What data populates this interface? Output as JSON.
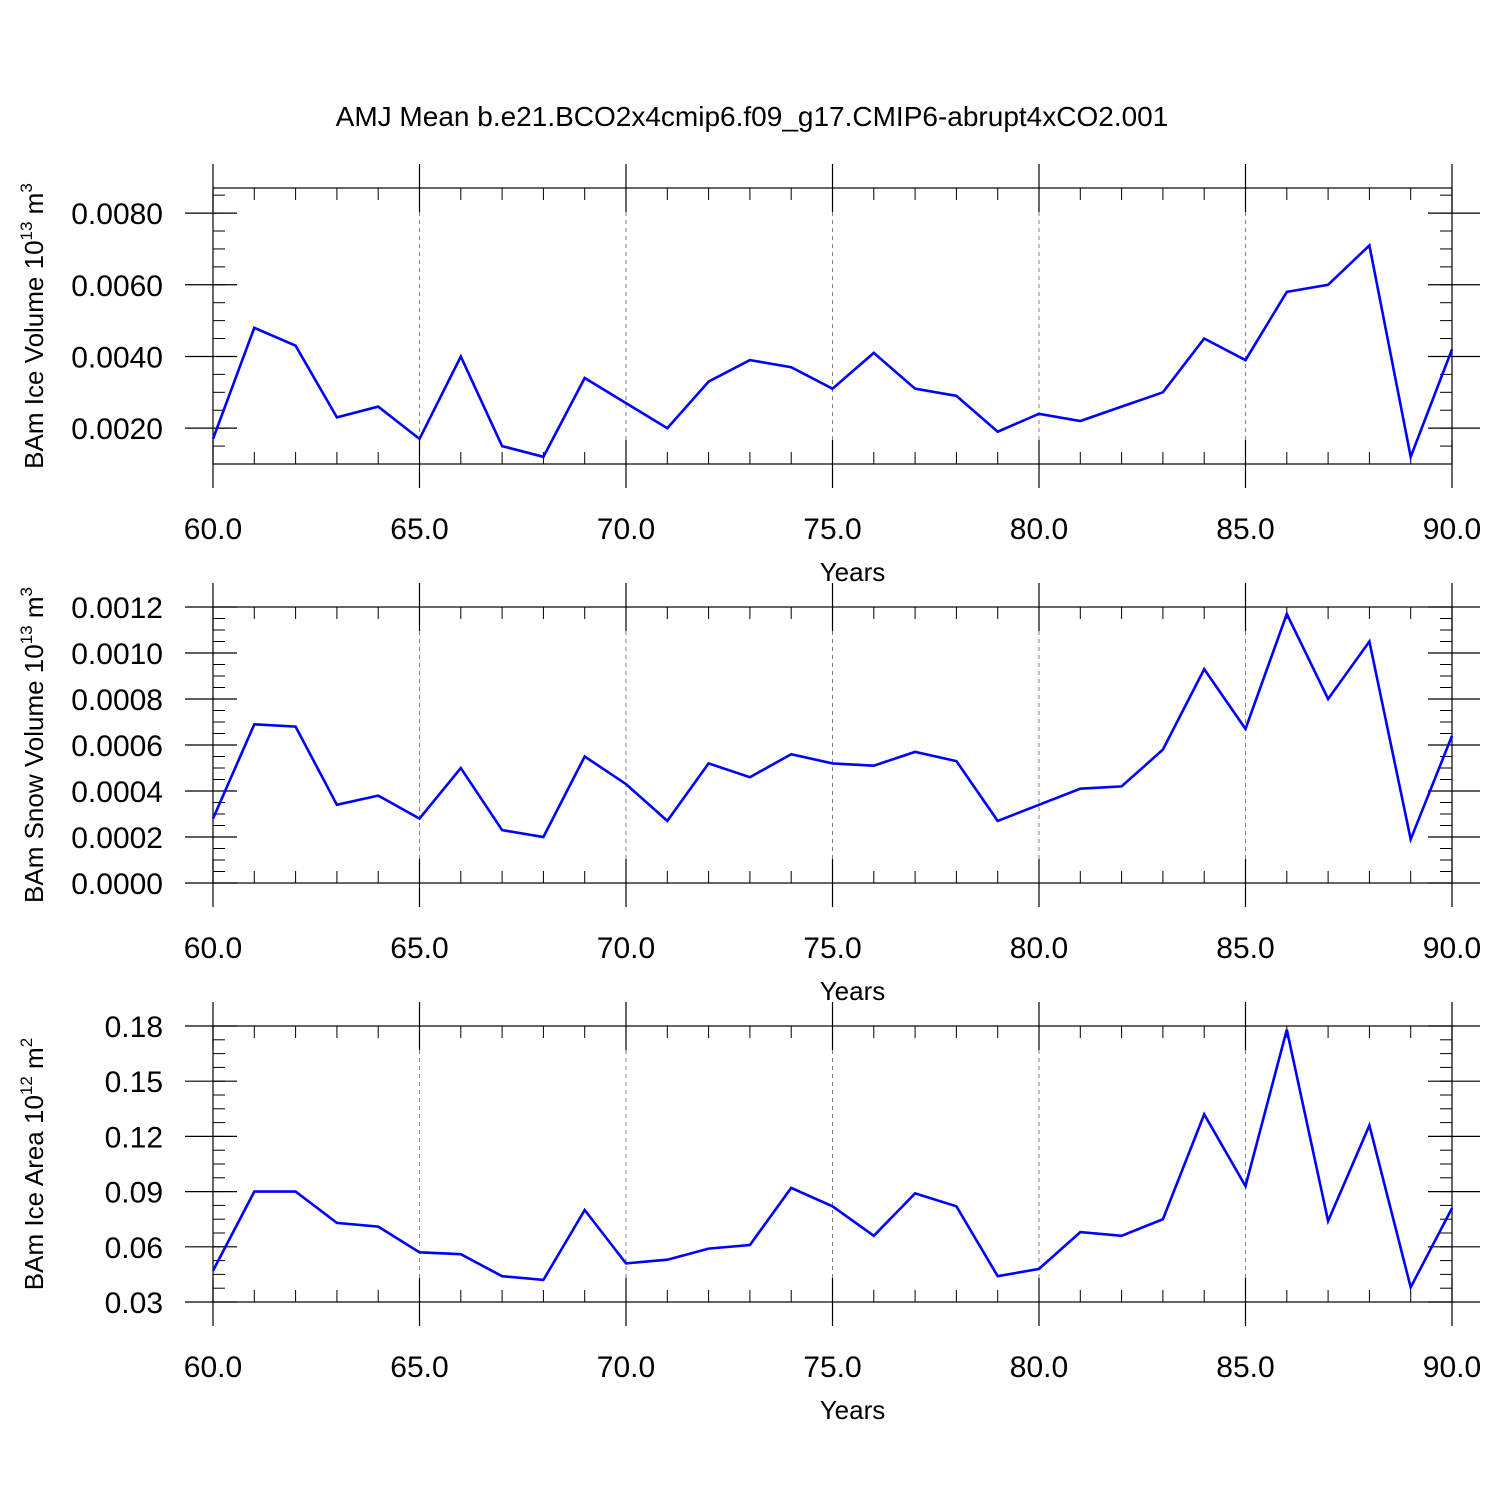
{
  "title": "AMJ Mean b.e21.BCO2x4cmip6.f09_g17.CMIP6-abrupt4xCO2.001",
  "colors": {
    "line": "#0000ff",
    "axis": "#000000",
    "grid": "#808080"
  },
  "chart_data": [
    {
      "type": "line",
      "xlabel": "Years",
      "ylabel": {
        "base": "BAm Ice Volume 10",
        "exp": "13",
        "unit": " m",
        "unit_exp": "3"
      },
      "xlim": [
        60,
        90
      ],
      "ylim": [
        0.001,
        0.0087
      ],
      "xticks": [
        "60.0",
        "65.0",
        "70.0",
        "75.0",
        "80.0",
        "85.0",
        "90.0"
      ],
      "yticks": [
        "0.0020",
        "0.0040",
        "0.0060",
        "0.0080"
      ],
      "ytick_values": [
        0.002,
        0.004,
        0.006,
        0.008
      ],
      "grid": "vertical dashed at major x ticks",
      "x": [
        60,
        61,
        62,
        63,
        64,
        65,
        66,
        67,
        68,
        69,
        70,
        71,
        72,
        73,
        74,
        75,
        76,
        77,
        78,
        79,
        80,
        81,
        82,
        83,
        84,
        85,
        86,
        87,
        88,
        89,
        90
      ],
      "series": [
        {
          "values": [
            0.0017,
            0.0048,
            0.0043,
            0.0023,
            0.0026,
            0.0017,
            0.004,
            0.0015,
            0.0012,
            0.0034,
            0.0027,
            0.002,
            0.0033,
            0.0039,
            0.0037,
            0.0031,
            0.0041,
            0.0031,
            0.0029,
            0.0019,
            0.0024,
            0.0022,
            0.0026,
            0.003,
            0.0045,
            0.0039,
            0.0058,
            0.006,
            0.0071,
            0.0012,
            0.0042
          ]
        }
      ]
    },
    {
      "type": "line",
      "xlabel": "Years",
      "ylabel": {
        "base": "BAm Snow Volume 10",
        "exp": "13",
        "unit": " m",
        "unit_exp": "3"
      },
      "xlim": [
        60,
        90
      ],
      "ylim": [
        0,
        0.0012
      ],
      "xticks": [
        "60.0",
        "65.0",
        "70.0",
        "75.0",
        "80.0",
        "85.0",
        "90.0"
      ],
      "yticks": [
        "0.0000",
        "0.0002",
        "0.0004",
        "0.0006",
        "0.0008",
        "0.0010",
        "0.0012"
      ],
      "ytick_values": [
        0,
        0.0002,
        0.0004,
        0.0006,
        0.0008,
        0.001,
        0.0012
      ],
      "grid": "vertical dashed at major x ticks",
      "x": [
        60,
        61,
        62,
        63,
        64,
        65,
        66,
        67,
        68,
        69,
        70,
        71,
        72,
        73,
        74,
        75,
        76,
        77,
        78,
        79,
        80,
        81,
        82,
        83,
        84,
        85,
        86,
        87,
        88,
        89,
        90
      ],
      "series": [
        {
          "values": [
            0.00028,
            0.00069,
            0.00068,
            0.00034,
            0.00038,
            0.00028,
            0.0005,
            0.00023,
            0.0002,
            0.00055,
            0.00043,
            0.00027,
            0.00052,
            0.00046,
            0.00056,
            0.00052,
            0.00051,
            0.00057,
            0.00053,
            0.00027,
            0.00034,
            0.00041,
            0.00042,
            0.00058,
            0.00093,
            0.00067,
            0.00117,
            0.0008,
            0.00105,
            0.00019,
            0.00064
          ]
        }
      ]
    },
    {
      "type": "line",
      "xlabel": "Years",
      "ylabel": {
        "base": "BAm Ice Area 10",
        "exp": "12",
        "unit": " m",
        "unit_exp": "2"
      },
      "xlim": [
        60,
        90
      ],
      "ylim": [
        0.03,
        0.18
      ],
      "xticks": [
        "60.0",
        "65.0",
        "70.0",
        "75.0",
        "80.0",
        "85.0",
        "90.0"
      ],
      "yticks": [
        "0.03",
        "0.06",
        "0.09",
        "0.12",
        "0.15",
        "0.18"
      ],
      "ytick_values": [
        0.03,
        0.06,
        0.09,
        0.12,
        0.15,
        0.18
      ],
      "grid": "vertical dashed at major x ticks",
      "x": [
        60,
        61,
        62,
        63,
        64,
        65,
        66,
        67,
        68,
        69,
        70,
        71,
        72,
        73,
        74,
        75,
        76,
        77,
        78,
        79,
        80,
        81,
        82,
        83,
        84,
        85,
        86,
        87,
        88,
        89,
        90
      ],
      "series": [
        {
          "values": [
            0.047,
            0.09,
            0.09,
            0.073,
            0.071,
            0.057,
            0.056,
            0.044,
            0.042,
            0.08,
            0.051,
            0.053,
            0.059,
            0.061,
            0.092,
            0.082,
            0.066,
            0.089,
            0.082,
            0.044,
            0.048,
            0.068,
            0.066,
            0.075,
            0.132,
            0.093,
            0.178,
            0.074,
            0.126,
            0.038,
            0.081
          ]
        }
      ]
    }
  ]
}
